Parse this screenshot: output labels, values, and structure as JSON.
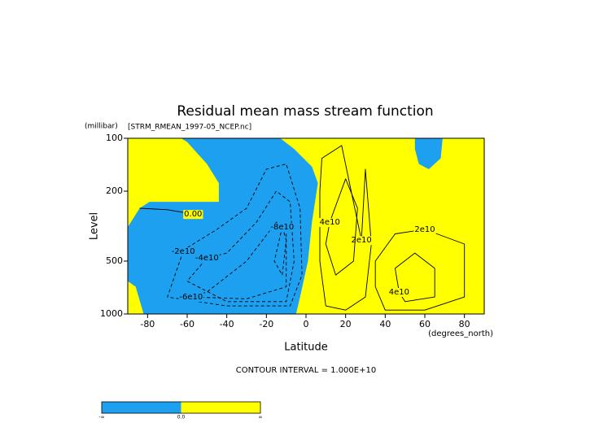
{
  "chart_data": {
    "type": "contour",
    "title": "Residual mean mass stream function",
    "subtitle": "[STRM_RMEAN_1997-05_NCEP.nc]",
    "y_units": "(millibar)",
    "x_units": "(degrees_north)",
    "ylabel": "Level",
    "xlabel": "Latitude",
    "note": "CONTOUR INTERVAL = 1.000E+10",
    "xlim": [
      -90,
      90
    ],
    "xticks": [
      -80,
      -60,
      -40,
      -20,
      0,
      20,
      40,
      60,
      80
    ],
    "ylim": [
      1000,
      100
    ],
    "yticks": [
      100,
      200,
      500,
      1000
    ],
    "ylog": true,
    "fill_colors": [
      "#1ea0f0",
      "#ffff00"
    ],
    "colorbar_labels": [
      "-∞",
      "0.0",
      "∞"
    ],
    "regions": [
      {
        "fill": 0,
        "x": [
          -63,
          -13,
          -6,
          3,
          6,
          3,
          1,
          -3,
          -5,
          -82,
          -86,
          -90,
          -90,
          -84,
          -79,
          -62,
          -44,
          -44,
          -50,
          -60
        ],
        "y": [
          100,
          100,
          115,
          145,
          180,
          300,
          500,
          800,
          1000,
          1000,
          700,
          650,
          320,
          250,
          230,
          230,
          230,
          180,
          140,
          105
        ]
      },
      {
        "fill": 0,
        "x": [
          55,
          69,
          68,
          62,
          57,
          55
        ],
        "y": [
          100,
          100,
          130,
          150,
          140,
          115
        ]
      }
    ],
    "contours": [
      {
        "level": 0,
        "label": "0.00",
        "x": [
          -57,
          -70,
          -84
        ],
        "y": [
          270,
          255,
          250
        ]
      },
      {
        "level": -20000000000,
        "label": "-2e10",
        "x": [
          -62,
          -60,
          -45,
          -30,
          -20,
          -10,
          -3,
          -2,
          -8,
          -40,
          -70
        ],
        "y": [
          440,
          420,
          330,
          250,
          150,
          140,
          250,
          600,
          900,
          900,
          800
        ]
      },
      {
        "level": -40000000000,
        "label": "-4e10",
        "x": [
          -50,
          -40,
          -25,
          -15,
          -8,
          -6,
          -10,
          -40,
          -60
        ],
        "y": [
          480,
          450,
          300,
          200,
          230,
          500,
          850,
          850,
          650
        ]
      },
      {
        "level": -60000000000,
        "label": "-6e10",
        "x": [
          -58,
          -50,
          -30,
          -15,
          -10,
          -10,
          -30
        ],
        "y": [
          800,
          750,
          500,
          300,
          350,
          700,
          820
        ]
      },
      {
        "level": -80000000000,
        "label": "-8e10",
        "x": [
          -12,
          -10,
          -12,
          -16
        ],
        "y": [
          320,
          380,
          600,
          500
        ]
      },
      {
        "level": 20000000000,
        "label": "2e10",
        "x": [
          28,
          30,
          33,
          30,
          20,
          10,
          7,
          7,
          8,
          18
        ],
        "y": [
          380,
          150,
          400,
          800,
          950,
          900,
          500,
          200,
          130,
          110
        ]
      },
      {
        "level": 40000000000,
        "label": "4e10",
        "x": [
          12,
          20,
          26,
          24,
          15,
          10
        ],
        "y": [
          300,
          170,
          250,
          500,
          600,
          400
        ]
      },
      {
        "level": 20000000000,
        "label": "2e10",
        "x": [
          60,
          80,
          80,
          60,
          40,
          35,
          35,
          45
        ],
        "y": [
          330,
          400,
          800,
          950,
          950,
          700,
          500,
          350
        ]
      },
      {
        "level": 40000000000,
        "label": "4e10",
        "x": [
          47,
          45,
          55,
          65,
          65,
          50
        ],
        "y": [
          750,
          550,
          450,
          550,
          800,
          850
        ]
      }
    ]
  }
}
